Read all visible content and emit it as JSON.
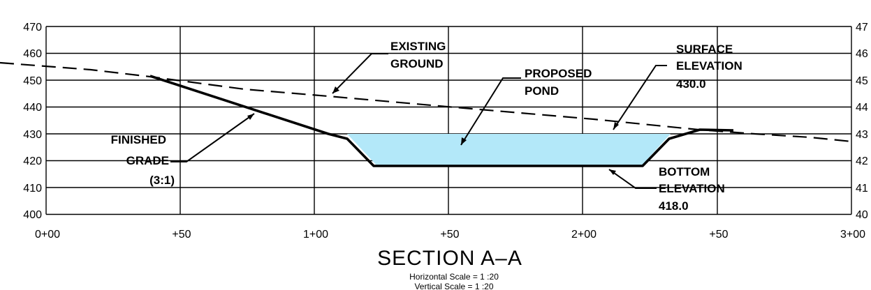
{
  "section": {
    "title": "SECTION A–A",
    "horizontal_scale": "Horizontal Scale = 1 :20",
    "vertical_scale": "Vertical Scale = 1 :20"
  },
  "axes": {
    "elevations_left": [
      "470",
      "460",
      "450",
      "440",
      "430",
      "420",
      "410",
      "400"
    ],
    "elevations_right": [
      "47",
      "46",
      "45",
      "44",
      "43",
      "42",
      "41",
      "40"
    ],
    "stations": [
      "0+00",
      "+50",
      "1+00",
      "+50",
      "2+00",
      "+50",
      "3+00"
    ]
  },
  "labels": {
    "existing_ground": [
      "EXISTING",
      "GROUND"
    ],
    "proposed_pond": [
      "PROPOSED",
      "POND"
    ],
    "surface_elevation": [
      "SURFACE",
      "ELEVATION",
      "430.0"
    ],
    "finished_grade": [
      "FINISHED",
      "GRADE",
      "(3:1)"
    ],
    "bottom_elevation": [
      "BOTTOM",
      "ELEVATION",
      "418.0"
    ]
  },
  "colors": {
    "pond_fill": "#b3e8f9",
    "line": "#000000",
    "background": "#ffffff"
  }
}
